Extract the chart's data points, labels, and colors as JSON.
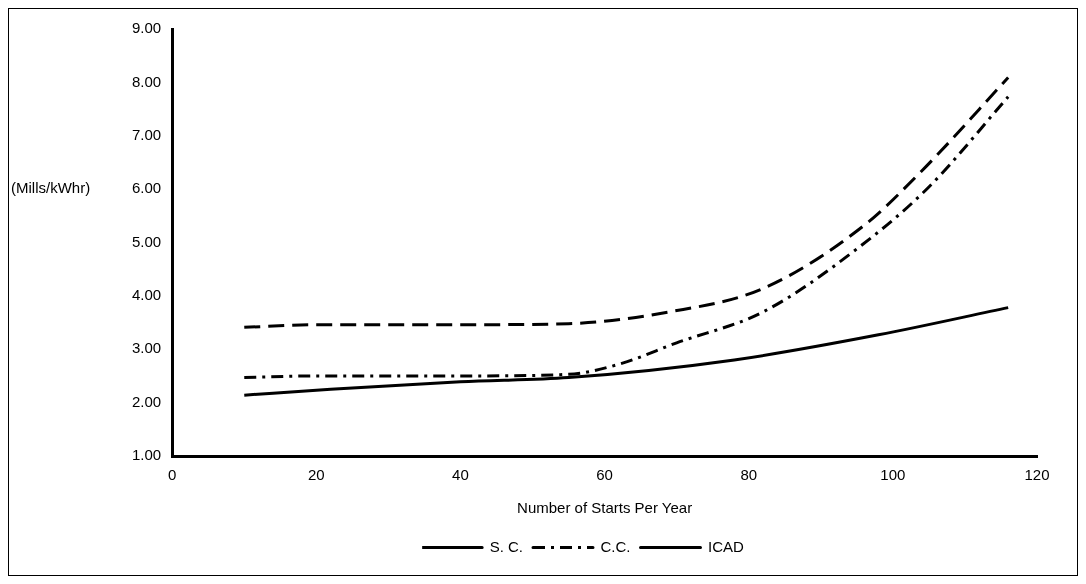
{
  "chart_data": {
    "type": "line",
    "xlabel": "Number of Starts Per Year",
    "ylabel": "(Mills/kWhr)",
    "xlim": [
      0,
      120
    ],
    "xticks": [
      0,
      20,
      40,
      60,
      80,
      100,
      120
    ],
    "ylim": [
      1,
      9
    ],
    "yticks": [
      {
        "value": 1,
        "label": "1.00"
      },
      {
        "value": 2,
        "label": "2.00"
      },
      {
        "value": 3,
        "label": "3.00"
      },
      {
        "value": 4,
        "label": "4.00"
      },
      {
        "value": 5,
        "label": "5.00"
      },
      {
        "value": 6,
        "label": "6.00"
      },
      {
        "value": 7,
        "label": "7.00"
      },
      {
        "value": 8,
        "label": "8.00"
      },
      {
        "value": 9,
        "label": "9.00"
      }
    ],
    "grid": false,
    "legend": "bottom",
    "marker": "none",
    "series": [
      {
        "name": "S. C.",
        "color": "#000000",
        "line_style": "dashed",
        "x": [
          10,
          20,
          40,
          55,
          69,
          82,
          96,
          104,
          116
        ],
        "values": [
          3.41,
          3.46,
          3.46,
          3.48,
          3.7,
          4.14,
          5.32,
          6.34,
          8.09
        ]
      },
      {
        "name": "C.C.",
        "color": "#000000",
        "line_style": "dashed",
        "x": [
          10,
          20,
          40,
          55,
          62,
          70,
          82,
          95,
          105,
          116
        ],
        "values": [
          2.47,
          2.5,
          2.5,
          2.53,
          2.72,
          3.12,
          3.7,
          4.88,
          6.04,
          7.73
        ]
      },
      {
        "name": "ICAD",
        "color": "#000000",
        "line_style": "solid",
        "x": [
          10,
          22,
          40,
          55,
          78,
          98,
          116
        ],
        "values": [
          2.14,
          2.25,
          2.39,
          2.47,
          2.8,
          3.27,
          3.78
        ]
      }
    ]
  }
}
